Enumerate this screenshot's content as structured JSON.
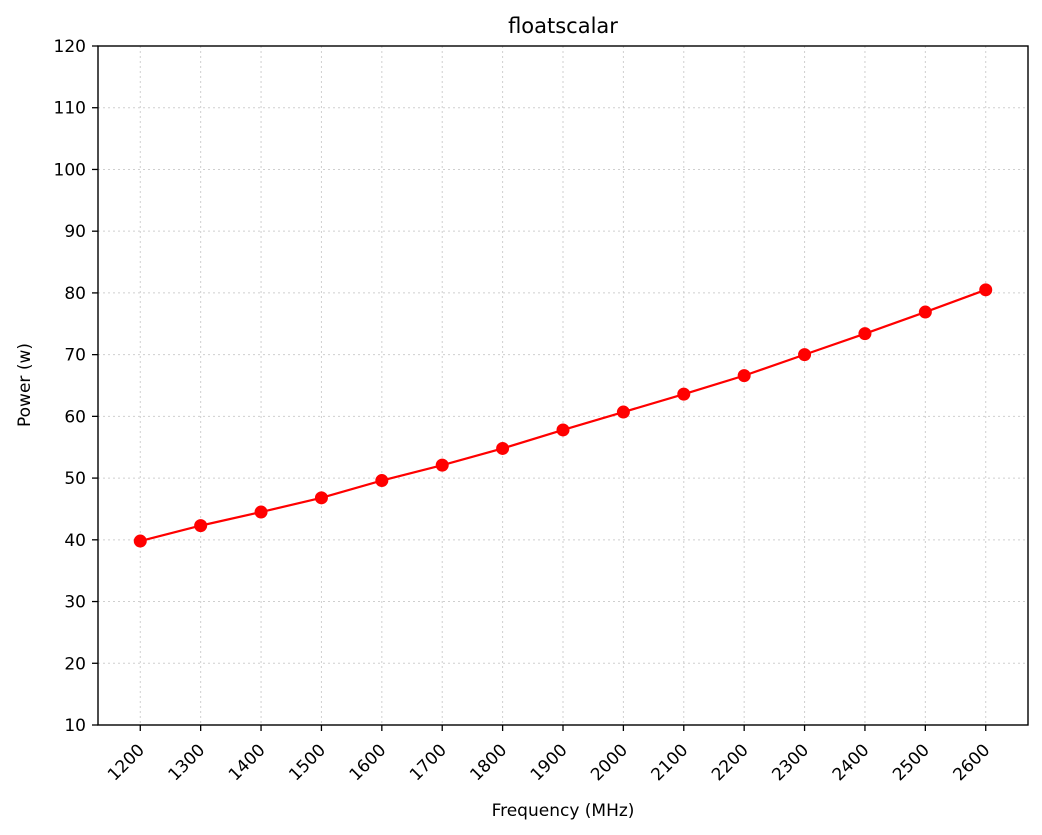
{
  "chart_data": {
    "type": "line",
    "title": "floatscalar",
    "xlabel": "Frequency (MHz)",
    "ylabel": "Power (w)",
    "x": [
      1200,
      1300,
      1400,
      1500,
      1600,
      1700,
      1800,
      1900,
      2000,
      2100,
      2200,
      2300,
      2400,
      2500,
      2600
    ],
    "xlim": [
      1130,
      2670
    ],
    "ylim": [
      10,
      120
    ],
    "yticks": [
      10,
      20,
      30,
      40,
      50,
      60,
      70,
      80,
      90,
      100,
      110,
      120
    ],
    "grid": true,
    "series": [
      {
        "name": "floatscalar",
        "color": "#ff0000",
        "marker": "circle",
        "values": [
          39.8,
          42.3,
          44.5,
          46.8,
          49.6,
          52.1,
          54.8,
          57.8,
          60.7,
          63.6,
          66.6,
          70.0,
          73.4,
          76.9,
          80.5
        ]
      }
    ]
  }
}
